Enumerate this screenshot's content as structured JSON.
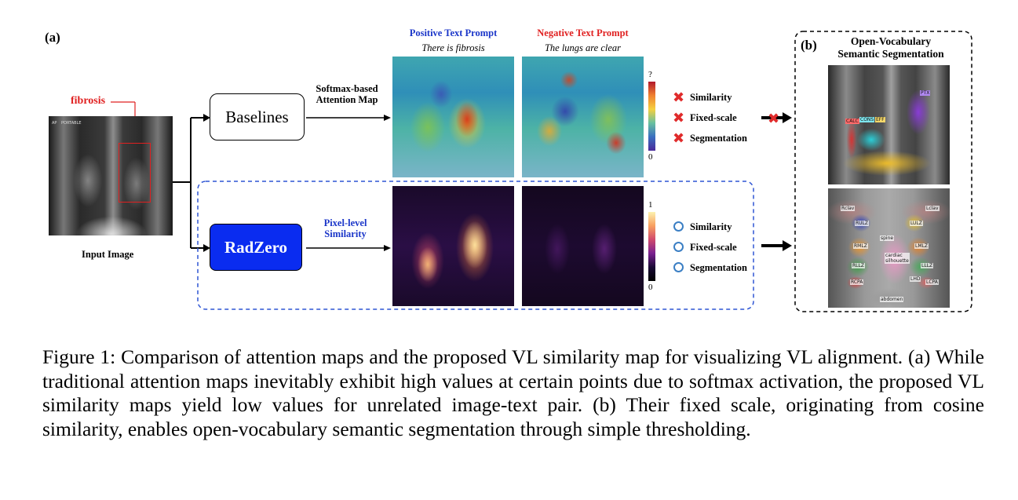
{
  "panel_a_label": "(a)",
  "panel_b_label": "(b)",
  "input": {
    "annotation": "fibrosis",
    "caption": "Input Image",
    "xray_tag": "AP",
    "xray_tag2": "PORTABLE"
  },
  "baselines": {
    "box_label": "Baselines",
    "arrow_label_line1": "Softmax-based",
    "arrow_label_line2": "Attention Map"
  },
  "radzero": {
    "box_label": "RadZero",
    "arrow_label_line1": "Pixel-level",
    "arrow_label_line2": "Similarity"
  },
  "prompts": {
    "positive_title": "Positive Text Prompt",
    "positive_text": "There is fibrosis",
    "negative_title": "Negative Text Prompt",
    "negative_text": "The lungs are clear"
  },
  "colorbar_top": {
    "max_label": "?",
    "min_label": "0"
  },
  "colorbar_bottom": {
    "max_label": "1",
    "min_label": "0"
  },
  "baseline_checks": [
    {
      "label": "Similarity"
    },
    {
      "label": "Fixed-scale"
    },
    {
      "label": "Segmentation"
    }
  ],
  "radzero_checks": [
    {
      "label": "Similarity"
    },
    {
      "label": "Fixed-scale"
    },
    {
      "label": "Segmentation"
    }
  ],
  "open_vocab": {
    "title_line1": "Open-Vocabulary",
    "title_line2": "Semantic Segmentation",
    "top_labels": [
      "PTX",
      "CONS",
      "EFF",
      "CALC"
    ],
    "bottom_labels": [
      "Rclav",
      "Lclav",
      "RULZ",
      "LULZ",
      "RMLZ",
      "spine",
      "LMLZ",
      "cardiac silhouette",
      "RLLZ",
      "LLLZ",
      "LHD",
      "RCPA",
      "LCPA",
      "abdomen"
    ]
  },
  "colors": {
    "baseline_box_border": "#000000",
    "radzero_box_fill": "#0a2cf0",
    "dashed_border": "#2f55d4",
    "positive_title": "#1c37c9",
    "negative_title": "#e02020",
    "fibrosis_annotation": "#e02020"
  },
  "caption": "Figure 1: Comparison of attention maps and the proposed VL similarity map for visualizing VL alignment. (a) While traditional attention maps inevitably exhibit high values at certain points due to softmax activation, the proposed VL similarity maps yield low values for unrelated image-text pair. (b) Their fixed scale, originating from cosine similarity, enables open-vocabulary semantic segmentation through simple thresholding."
}
